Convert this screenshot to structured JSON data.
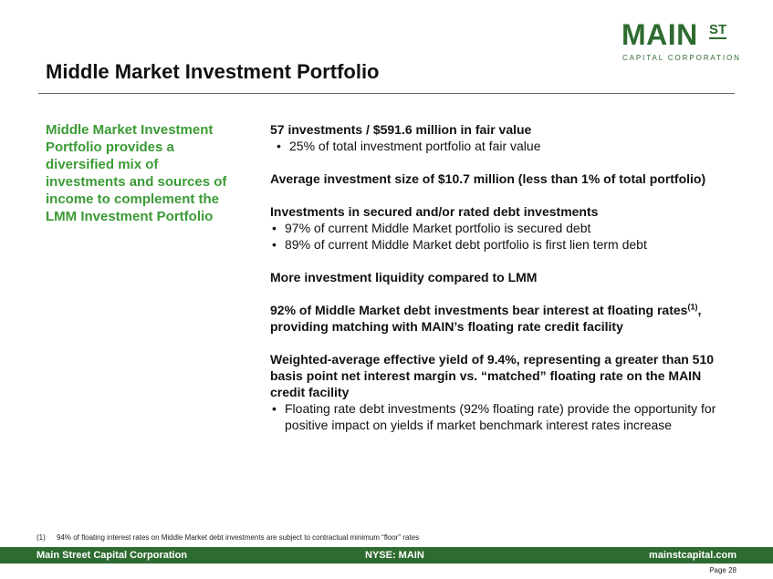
{
  "logo": {
    "main": "MAIN",
    "st": "ST",
    "sub": "CAPITAL CORPORATION"
  },
  "page_title": "Middle Market Investment Portfolio",
  "callout": "Middle Market Investment Portfolio provides a diversified mix of investments and sources of income to complement the LMM Investment Portfolio",
  "content": {
    "s1_heading": "57 investments / $591.6 million in fair value",
    "s1_bullet": "25% of total investment portfolio at fair value",
    "s2_heading": "Average investment size of $10.7 million (less than 1% of total portfolio)",
    "s3_heading": "Investments in secured and/or rated debt investments",
    "s3_bullets": [
      "97% of current Middle Market portfolio is secured debt",
      "89% of current Middle Market debt portfolio is first lien term debt"
    ],
    "s4_heading": "More investment liquidity compared to LMM",
    "s5_heading_a": "92% of Middle Market debt investments bear interest at floating rates",
    "s5_sup": "(1)",
    "s5_heading_b": ", providing matching with MAIN’s floating rate credit facility",
    "s6_heading": "Weighted-average effective yield of 9.4%, representing a greater than 510 basis point net interest margin vs. “matched” floating rate on the MAIN credit facility",
    "s6_bullet": "Floating rate debt investments (92% floating rate) provide the opportunity for positive impact on yields if market benchmark interest rates increase"
  },
  "footnote": {
    "num": "(1)",
    "text": "94% of floating interest rates on Middle Market debt investments are subject to contractual minimum “floor” rates"
  },
  "footer": {
    "left": "Main Street Capital Corporation",
    "middle": "NYSE: MAIN",
    "right": "mainstcapital.com"
  },
  "page_number": "Page  28",
  "colors": {
    "brand_green": "#2e6b30",
    "callout_green": "#3b9b35"
  }
}
